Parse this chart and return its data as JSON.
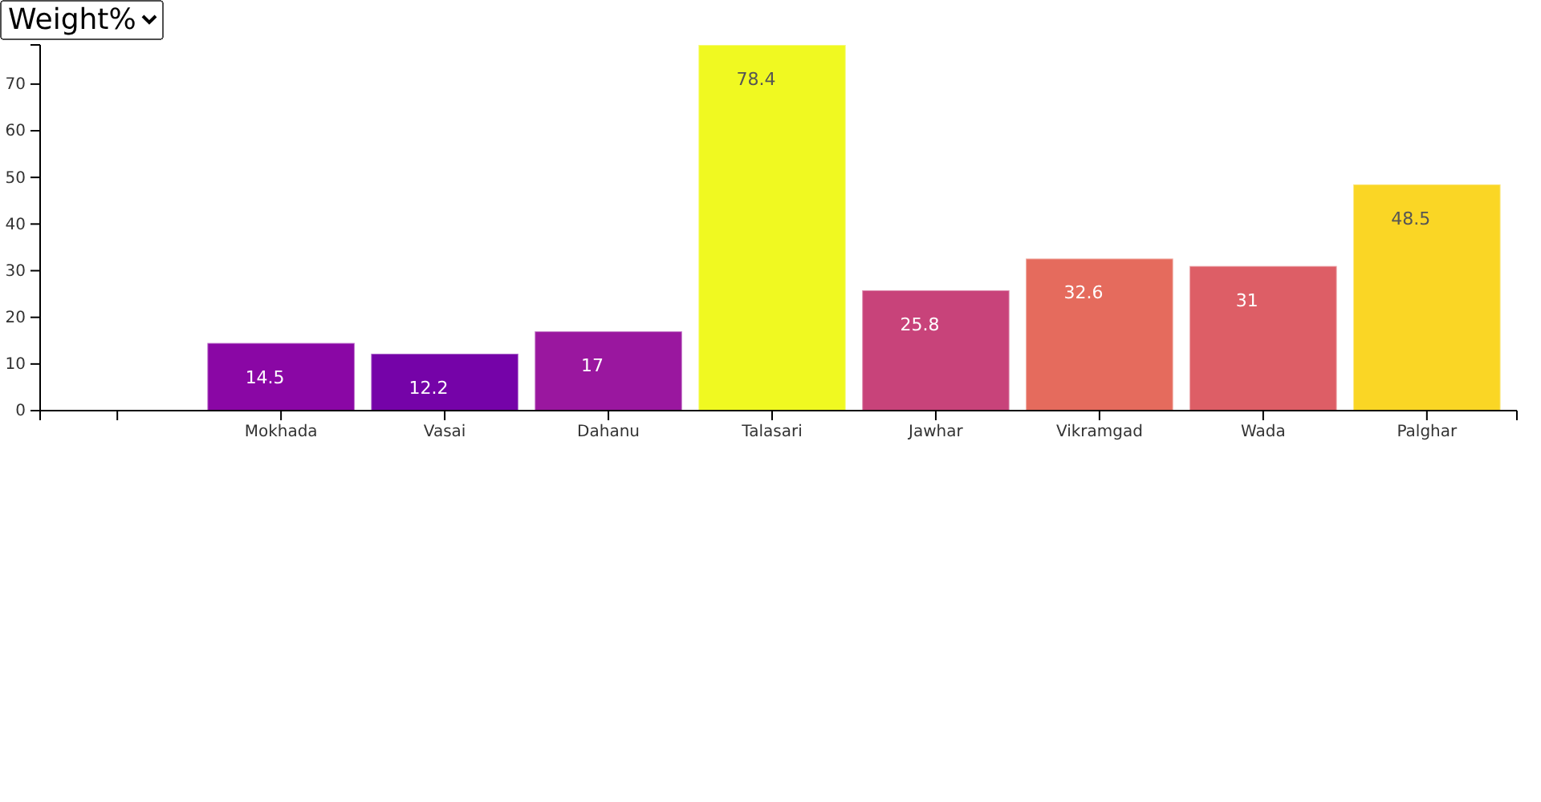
{
  "chart_data": {
    "type": "bar",
    "ylabel": "Weight%",
    "categories": [
      null,
      "Mokhada",
      "Vasai",
      "Dahanu",
      "Talasari",
      "Jawhar",
      "Vikramgad",
      "Wada",
      "Palghar"
    ],
    "values": [
      null,
      14.5,
      12.2,
      17,
      78.4,
      25.8,
      32.6,
      31,
      48.5
    ],
    "colors": [
      null,
      "#8a07a5",
      "#7503a8",
      "#9a179f",
      "#f0f921",
      "#c8437a",
      "#e56b5d",
      "#dd5e66",
      "#fad625"
    ],
    "ylim": [
      0,
      78.4
    ],
    "yticks": [
      0,
      10,
      20,
      30,
      40,
      50,
      60,
      70
    ],
    "data_labels": true
  }
}
